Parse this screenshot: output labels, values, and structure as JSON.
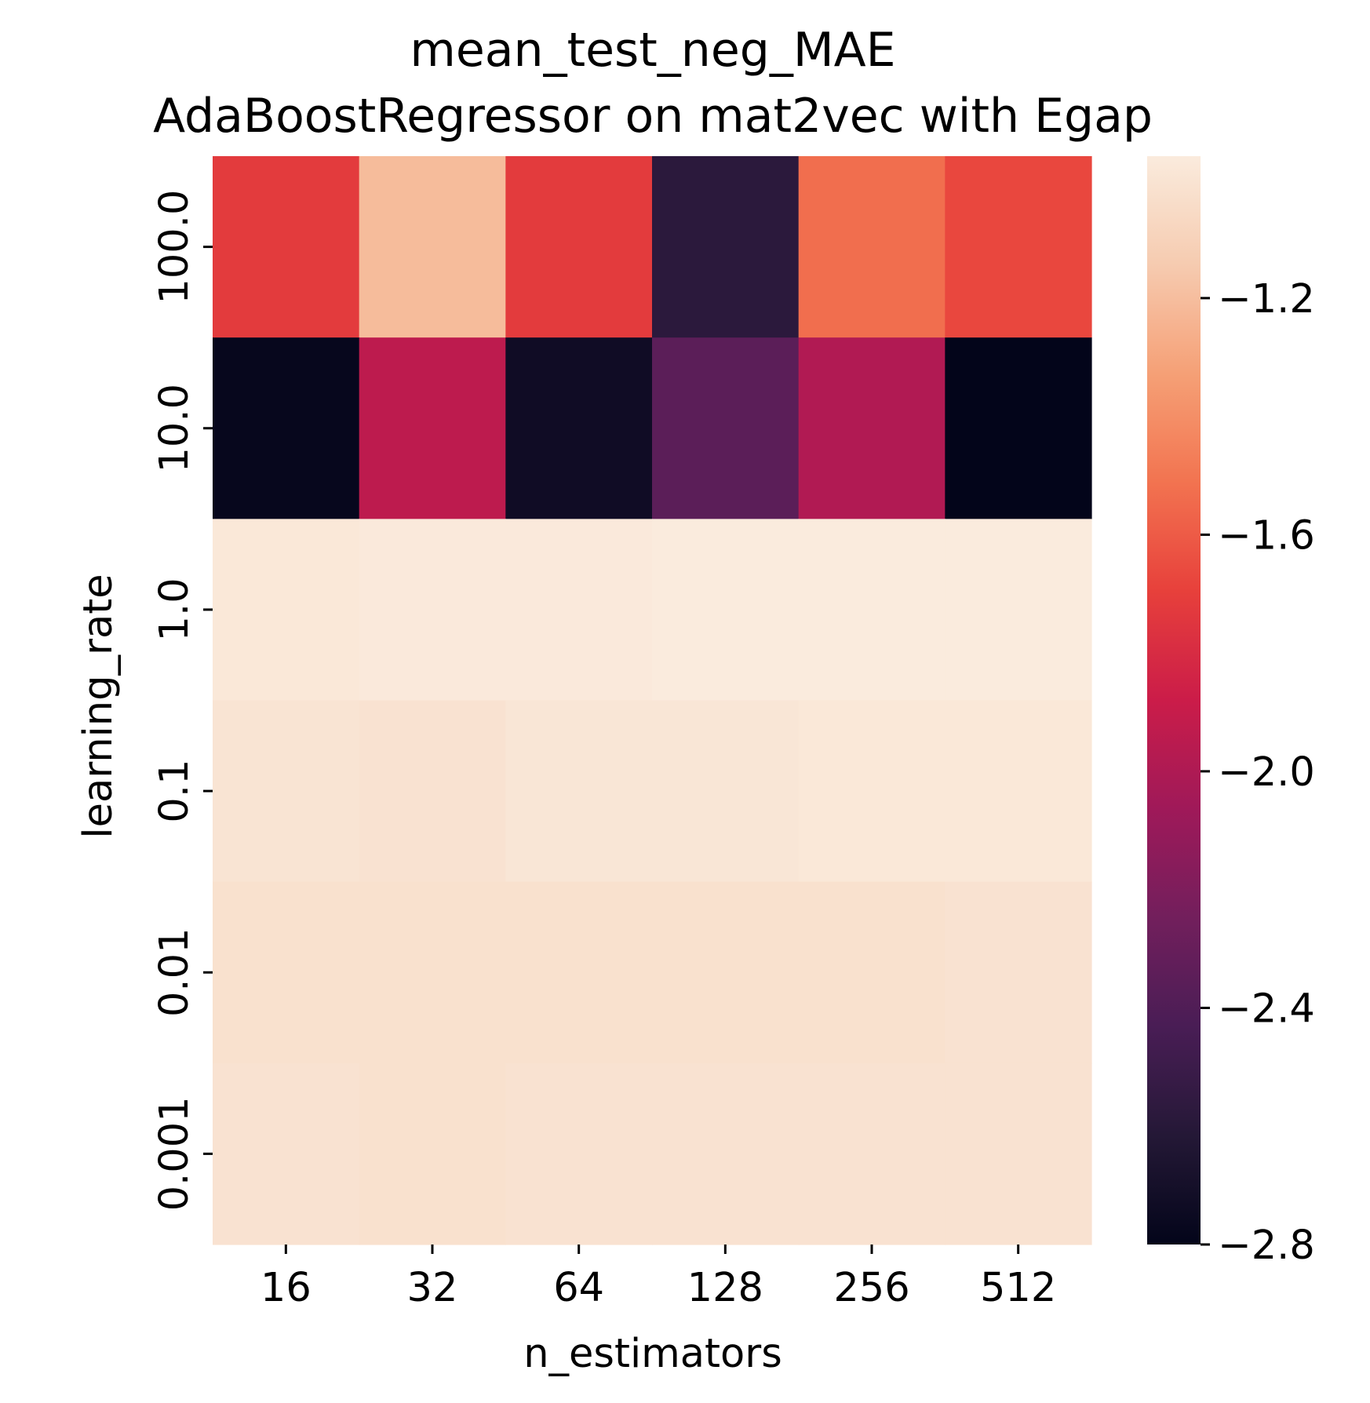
{
  "chart_data": {
    "type": "heatmap",
    "title": "mean_test_neg_MAE\nAdaBoostRegressor on mat2vec with Egap",
    "title_lines": [
      "mean_test_neg_MAE",
      "AdaBoostRegressor on mat2vec with Egap"
    ],
    "xlabel": "n_estimators",
    "ylabel": "learning_rate",
    "x_categories": [
      "16",
      "32",
      "64",
      "128",
      "256",
      "512"
    ],
    "y_categories": [
      "100.0",
      "10.0",
      "1.0",
      "0.1",
      "0.01",
      "0.001"
    ],
    "values": [
      [
        -1.72,
        -1.21,
        -1.72,
        -2.58,
        -1.53,
        -1.67
      ],
      [
        -2.78,
        -1.94,
        -2.73,
        -2.35,
        -1.99,
        -2.8
      ],
      [
        -0.98,
        -0.97,
        -0.97,
        -0.96,
        -0.96,
        -0.96
      ],
      [
        -1.0,
        -1.01,
        -0.99,
        -0.99,
        -0.98,
        -0.98
      ],
      [
        -1.02,
        -1.02,
        -1.02,
        -1.02,
        -1.02,
        -1.01
      ],
      [
        -1.01,
        -1.02,
        -1.01,
        -1.01,
        -1.01,
        -1.01
      ]
    ],
    "colorbar": {
      "colormap": "rocket",
      "vmin": -2.8,
      "vmax": -0.96,
      "ticks": [
        -1.2,
        -1.6,
        -2.0,
        -2.4,
        -2.8
      ],
      "tick_labels": [
        "−1.2",
        "−1.6",
        "−2.0",
        "−2.4",
        "−2.8"
      ]
    },
    "grid": false,
    "legend": "colorbar right"
  }
}
